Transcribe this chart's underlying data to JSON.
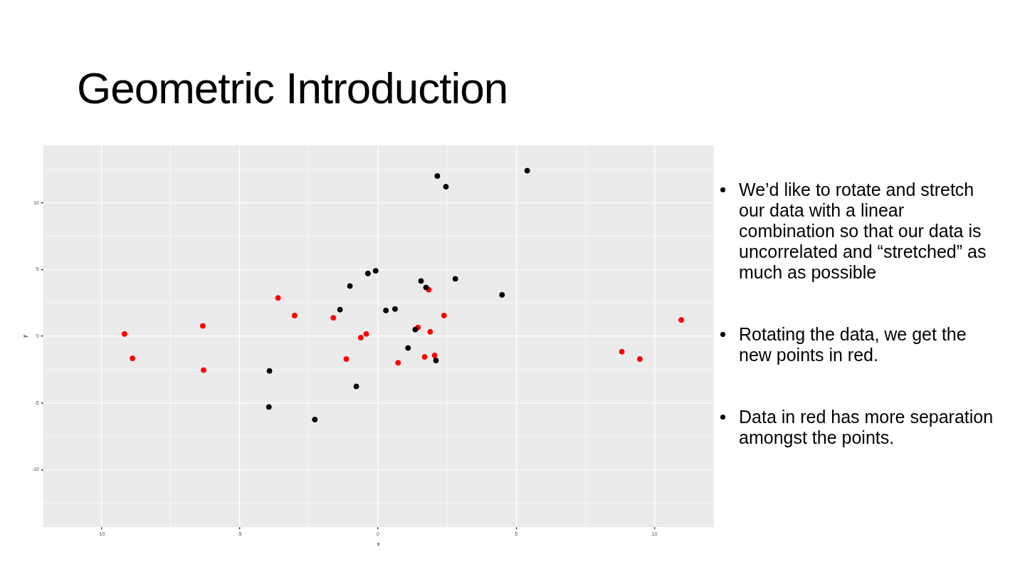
{
  "chart_data": {
    "type": "scatter",
    "title": "Geometric Introduction",
    "xlabel": "x",
    "ylabel": "y",
    "xlim": [
      -12.1,
      12.15
    ],
    "xticks": [
      -10,
      -5,
      0,
      5,
      10
    ],
    "ylim": [
      -14.3,
      14.3
    ],
    "yticks": [
      -10,
      -5,
      0,
      5,
      10
    ],
    "grid": true,
    "legend": false,
    "marker": "circle",
    "series": [
      {
        "color": "#000000",
        "x": [
          2.15,
          2.46,
          5.4,
          -0.08,
          -0.36,
          -1.01,
          1.56,
          1.74,
          2.8,
          4.49,
          -1.37,
          0.29,
          0.62,
          1.35,
          1.09,
          2.1,
          -3.92,
          -0.78,
          -3.94,
          -2.28
        ],
        "values": [
          12.0,
          11.2,
          12.4,
          4.9,
          4.7,
          3.76,
          4.14,
          3.65,
          4.3,
          3.1,
          1.99,
          1.93,
          2.04,
          0.5,
          -0.88,
          -1.82,
          -2.6,
          -3.76,
          -5.3,
          -6.24
        ]
      },
      {
        "color": "#ff0000",
        "x": [
          -9.16,
          -8.87,
          -6.33,
          -6.3,
          -3.61,
          -3.01,
          -1.61,
          -1.14,
          -0.62,
          -0.42,
          0.73,
          1.45,
          1.89,
          1.84,
          2.39,
          1.69,
          2.05,
          8.82,
          9.47,
          10.97
        ],
        "values": [
          0.17,
          -1.66,
          0.77,
          -2.54,
          2.87,
          1.55,
          1.38,
          -1.71,
          -0.11,
          0.17,
          -1.99,
          0.66,
          0.33,
          3.48,
          1.55,
          -1.55,
          -1.44,
          -1.16,
          -1.71,
          1.22
        ]
      }
    ],
    "annotations": [
      "We’d like to rotate and stretch our data with a linear combination so that our data is uncorrelated and “stretched” as much as possible",
      "Rotating the data, we get the new points in red.",
      "Data in red has more separation amongst the points."
    ]
  }
}
